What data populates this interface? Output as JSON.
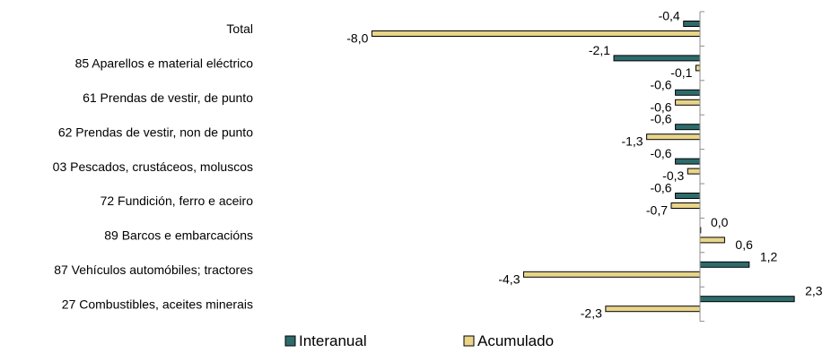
{
  "chart_data": {
    "type": "bar",
    "orientation": "horizontal",
    "categories": [
      "Total",
      "85 Aparellos e material eléctrico",
      "61 Prendas de vestir, de punto",
      "62 Prendas de vestir, non de punto",
      "03 Pescados, crustáceos, moluscos",
      "72 Fundición, ferro e aceiro",
      "89 Barcos e embarcacións",
      "87 Vehículos automóbiles; tractores",
      "27 Combustibles, aceites minerais"
    ],
    "series": [
      {
        "name": "Interanual",
        "color": "#2e6b6b",
        "values": [
          -0.4,
          -2.1,
          -0.6,
          -0.6,
          -0.6,
          -0.6,
          0.0,
          1.2,
          2.3
        ],
        "labels": [
          "-0,4",
          "-2,1",
          "-0,6",
          "-0,6",
          "-0,6",
          "-0,6",
          "0,0",
          "1,2",
          "2,3"
        ]
      },
      {
        "name": "Acumulado",
        "color": "#e9d58a",
        "values": [
          -8.0,
          -0.1,
          -0.6,
          -1.3,
          -0.3,
          -0.7,
          0.6,
          -4.3,
          -2.3
        ],
        "labels": [
          "-8,0",
          "-0,1",
          "-0,6",
          "-1,3",
          "-0,3",
          "-0,7",
          "0,6",
          "-4,3",
          "-2,3"
        ]
      }
    ],
    "xlim": [
      -8.5,
      2.5
    ],
    "grid": false,
    "legend_position": "bottom"
  }
}
